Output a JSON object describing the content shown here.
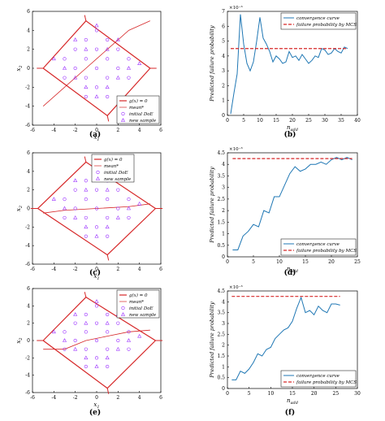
{
  "chart_data": [
    {
      "panel": "a",
      "type": "scatter",
      "caption": "(a)",
      "xlabel": "x1",
      "ylabel": "x2",
      "xlim": [
        -6,
        6
      ],
      "ylim": [
        -6,
        6
      ],
      "xticks": [
        "-6",
        "-4",
        "-2",
        "0",
        "2",
        "4",
        "6"
      ],
      "yticks": [
        "-6",
        "-4",
        "-2",
        "0",
        "2",
        "4",
        "6"
      ],
      "legend_position": "bottom-right",
      "legend": [
        "g(x) = 0",
        "mean*",
        "initial DoE",
        "new sample"
      ],
      "limit_state_polygon": [
        [
          -5,
          0
        ],
        [
          -1,
          5
        ],
        [
          5,
          0
        ],
        [
          1,
          -5
        ]
      ],
      "initial_doe": [
        [
          -3,
          1
        ],
        [
          -2,
          2
        ],
        [
          -1,
          3
        ],
        [
          0,
          4
        ],
        [
          1,
          3
        ],
        [
          2,
          2
        ],
        [
          3,
          1
        ],
        [
          -2,
          0
        ],
        [
          -1,
          1
        ],
        [
          0,
          2
        ],
        [
          1,
          1
        ],
        [
          2,
          0
        ],
        [
          -1,
          -1
        ],
        [
          0,
          0
        ],
        [
          1,
          -1
        ],
        [
          0,
          -2
        ],
        [
          -3,
          -1
        ],
        [
          3,
          -1
        ],
        [
          -1,
          -3
        ],
        [
          1,
          -3
        ]
      ],
      "new_samples": [
        [
          -4,
          1
        ],
        [
          -2,
          3
        ],
        [
          0,
          4.5
        ],
        [
          2,
          3
        ],
        [
          4,
          0.5
        ],
        [
          -1,
          2
        ],
        [
          1,
          2
        ],
        [
          -2,
          -1
        ],
        [
          2,
          -1
        ],
        [
          -1,
          -2
        ],
        [
          1,
          -2
        ],
        [
          0,
          -3
        ],
        [
          -3,
          0
        ],
        [
          3,
          0
        ]
      ],
      "mean_curve": [
        [
          -5,
          -4
        ],
        [
          -3,
          -2
        ],
        [
          -1,
          0
        ],
        [
          0,
          1
        ],
        [
          1,
          2
        ],
        [
          3,
          4
        ],
        [
          5,
          5
        ]
      ]
    },
    {
      "panel": "b",
      "type": "line",
      "caption": "(b)",
      "xlabel": "n_add",
      "ylabel": "Predicted failure probability",
      "yexp": "×10⁻³",
      "xlim": [
        0,
        40
      ],
      "ylim": [
        0,
        7
      ],
      "xticks": [
        "0",
        "5",
        "10",
        "15",
        "20",
        "25",
        "30",
        "35",
        "40"
      ],
      "yticks": [
        "0",
        "1",
        "2",
        "3",
        "4",
        "5",
        "6",
        "7"
      ],
      "legend_position": "top-right",
      "series": [
        {
          "name": "convergence curve",
          "x": [
            1,
            2,
            3,
            4,
            5,
            6,
            7,
            8,
            9,
            10,
            11,
            12,
            13,
            14,
            15,
            16,
            17,
            18,
            19,
            20,
            21,
            22,
            23,
            24,
            25,
            26,
            27,
            28,
            29,
            30,
            31,
            32,
            33,
            34,
            35,
            36,
            37
          ],
          "values": [
            0.1,
            1.5,
            2.8,
            6.8,
            4.8,
            3.5,
            3.0,
            3.6,
            5.0,
            6.6,
            5.2,
            4.8,
            4.3,
            3.6,
            4.0,
            3.8,
            3.5,
            3.6,
            4.3,
            3.9,
            4.0,
            3.7,
            4.1,
            3.8,
            3.5,
            3.7,
            4.0,
            3.9,
            4.5,
            4.4,
            4.1,
            4.2,
            4.5,
            4.3,
            4.2,
            4.6,
            4.5
          ]
        },
        {
          "name": "failure probability by MCS",
          "x": [
            1,
            37
          ],
          "values": [
            4.5,
            4.5
          ]
        }
      ]
    },
    {
      "panel": "c",
      "type": "scatter",
      "caption": "(c)",
      "xlabel": "x1",
      "ylabel": "x2",
      "xlim": [
        -6,
        6
      ],
      "ylim": [
        -6,
        6
      ],
      "xticks": [
        "-6",
        "-4",
        "-2",
        "0",
        "2",
        "4",
        "6"
      ],
      "yticks": [
        "-6",
        "-4",
        "-2",
        "0",
        "2",
        "4",
        "6"
      ],
      "legend_position": "top-left",
      "legend": [
        "g(x) = 0",
        "mean*",
        "initial DoE",
        "new sample"
      ],
      "limit_state_polygon": [
        [
          -5.5,
          0
        ],
        [
          -1,
          5
        ],
        [
          5.5,
          0
        ],
        [
          1,
          -5
        ]
      ],
      "initial_doe": [
        [
          -3,
          1
        ],
        [
          -2,
          2
        ],
        [
          -1,
          3
        ],
        [
          0,
          4
        ],
        [
          1,
          3
        ],
        [
          2,
          2
        ],
        [
          3,
          1
        ],
        [
          -2,
          0
        ],
        [
          -1,
          1
        ],
        [
          0,
          2
        ],
        [
          1,
          1
        ],
        [
          2,
          0
        ],
        [
          -1,
          -1
        ],
        [
          0,
          0
        ],
        [
          1,
          -1
        ],
        [
          0,
          -2
        ],
        [
          -3,
          -1
        ],
        [
          3,
          -1
        ],
        [
          -1,
          -3
        ],
        [
          1,
          -3
        ]
      ],
      "new_samples": [
        [
          -4,
          1
        ],
        [
          -2,
          3
        ],
        [
          0,
          4.5
        ],
        [
          2,
          3
        ],
        [
          4,
          0.5
        ],
        [
          -1,
          2
        ],
        [
          1,
          2
        ],
        [
          -2,
          -1
        ],
        [
          2,
          -1
        ],
        [
          -1,
          -2
        ],
        [
          1,
          -2
        ],
        [
          0,
          -3
        ],
        [
          -3,
          0
        ],
        [
          3,
          0
        ]
      ],
      "mean_curve": [
        [
          -5,
          -0.5
        ],
        [
          -3,
          -0.2
        ],
        [
          0,
          0
        ],
        [
          3,
          0.2
        ],
        [
          5,
          0.5
        ]
      ]
    },
    {
      "panel": "d",
      "type": "line",
      "caption": "(d)",
      "xlabel": "n_add",
      "ylabel": "Predicted failure probability",
      "yexp": "×10⁻³",
      "xlim": [
        0,
        25
      ],
      "ylim": [
        0,
        4.5
      ],
      "xticks": [
        "0",
        "5",
        "10",
        "15",
        "20",
        "25"
      ],
      "yticks": [
        "0",
        "0.5",
        "1",
        "1.5",
        "2",
        "2.5",
        "3",
        "3.5",
        "4",
        "4.5"
      ],
      "legend_position": "bottom-right",
      "series": [
        {
          "name": "convergence curve",
          "x": [
            1,
            2,
            3,
            4,
            5,
            6,
            7,
            8,
            9,
            10,
            11,
            12,
            13,
            14,
            15,
            16,
            17,
            18,
            19,
            20,
            21,
            22,
            23,
            24
          ],
          "values": [
            0.3,
            0.3,
            0.9,
            1.1,
            1.4,
            1.3,
            2.0,
            1.9,
            2.6,
            2.6,
            3.1,
            3.6,
            3.9,
            3.7,
            3.8,
            4.0,
            4.0,
            4.1,
            4.0,
            4.2,
            4.3,
            4.2,
            4.3,
            4.2
          ]
        },
        {
          "name": "failure probability by MCS",
          "x": [
            1,
            24
          ],
          "values": [
            4.25,
            4.25
          ]
        }
      ]
    },
    {
      "panel": "e",
      "type": "scatter",
      "caption": "(e)",
      "xlabel": "x1",
      "ylabel": "x2",
      "xlim": [
        -6,
        6
      ],
      "ylim": [
        -6,
        6
      ],
      "xticks": [
        "-6",
        "-4",
        "-2",
        "0",
        "2",
        "4",
        "6"
      ],
      "yticks": [
        "-6",
        "-4",
        "-2",
        "0",
        "2",
        "4",
        "6"
      ],
      "legend_position": "top-right",
      "legend": [
        "g(x) = 0",
        "mean*",
        "initial DoE",
        "new sample"
      ],
      "limit_state_polygon": [
        [
          -5,
          0
        ],
        [
          -1,
          5
        ],
        [
          5.5,
          0
        ],
        [
          1,
          -5.5
        ]
      ],
      "initial_doe": [
        [
          -3,
          1
        ],
        [
          -2,
          2
        ],
        [
          -1,
          3
        ],
        [
          0,
          4
        ],
        [
          1,
          3
        ],
        [
          2,
          2
        ],
        [
          3,
          1
        ],
        [
          -2,
          0
        ],
        [
          -1,
          1
        ],
        [
          0,
          2
        ],
        [
          1,
          1
        ],
        [
          2,
          0
        ],
        [
          -1,
          -1
        ],
        [
          0,
          0
        ],
        [
          1,
          -1
        ],
        [
          0,
          -2
        ],
        [
          -3,
          -1
        ],
        [
          3,
          -1
        ],
        [
          -1,
          -3
        ],
        [
          1,
          -3
        ]
      ],
      "new_samples": [
        [
          -4,
          1
        ],
        [
          -2,
          3
        ],
        [
          0,
          4.5
        ],
        [
          2,
          3
        ],
        [
          4,
          0.5
        ],
        [
          -1,
          2
        ],
        [
          1,
          2
        ],
        [
          -2,
          -1
        ],
        [
          2,
          -1
        ],
        [
          -1,
          -2
        ],
        [
          1,
          -2
        ],
        [
          0,
          -3
        ],
        [
          -3,
          0
        ],
        [
          3,
          0
        ]
      ],
      "mean_curve": [
        [
          -5,
          -1
        ],
        [
          -3,
          -1
        ],
        [
          -1,
          0
        ],
        [
          1,
          0.5
        ],
        [
          3,
          1
        ],
        [
          5,
          1.2
        ]
      ]
    },
    {
      "panel": "f",
      "type": "line",
      "caption": "(f)",
      "xlabel": "n_add",
      "ylabel": "Predicted failure probability",
      "yexp": "×10⁻³",
      "xlim": [
        0,
        30
      ],
      "ylim": [
        0,
        4.5
      ],
      "xticks": [
        "0",
        "5",
        "10",
        "15",
        "20",
        "25",
        "30"
      ],
      "yticks": [
        "0",
        "0.5",
        "1",
        "1.5",
        "2",
        "2.5",
        "3",
        "3.5",
        "4",
        "4.5"
      ],
      "legend_position": "bottom-right",
      "series": [
        {
          "name": "convergence curve",
          "x": [
            1,
            2,
            3,
            4,
            5,
            6,
            7,
            8,
            9,
            10,
            11,
            12,
            13,
            14,
            15,
            16,
            17,
            18,
            19,
            20,
            21,
            22,
            23,
            24,
            25,
            26
          ],
          "values": [
            0.4,
            0.4,
            0.8,
            0.7,
            0.9,
            1.2,
            1.6,
            1.5,
            1.8,
            1.9,
            2.3,
            2.5,
            2.7,
            2.8,
            3.1,
            3.7,
            4.2,
            3.5,
            3.6,
            3.4,
            3.8,
            3.6,
            3.5,
            3.9,
            3.9,
            3.85
          ]
        },
        {
          "name": "failure probability by MCS",
          "x": [
            1,
            26
          ],
          "values": [
            4.25,
            4.25
          ]
        }
      ]
    }
  ]
}
